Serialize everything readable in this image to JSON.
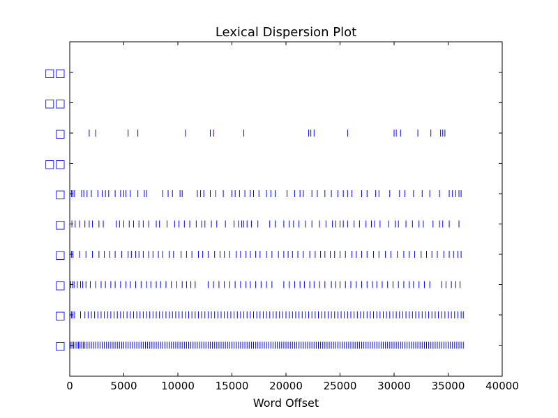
{
  "chart_data": {
    "type": "scatter",
    "title": "Lexical Dispersion Plot",
    "xlabel": "Word Offset",
    "ylabel": "",
    "xlim": [
      0,
      40000
    ],
    "xticks": [
      0,
      5000,
      10000,
      15000,
      20000,
      25000,
      30000,
      35000,
      40000
    ],
    "xtick_labels": [
      "0",
      "5000",
      "10000",
      "15000",
      "20000",
      "25000",
      "30000",
      "35000",
      "40000"
    ],
    "grid": false,
    "marker": "|",
    "mark_color": "#0000ff",
    "label_color": "#0000ff",
    "words": [
      {
        "label": "□□",
        "offsets": []
      },
      {
        "label": "□□",
        "offsets": []
      },
      {
        "label": "□",
        "offsets": [
          1800,
          2400,
          5400,
          6300,
          10700,
          13000,
          13300,
          16100,
          22100,
          22300,
          22600,
          25700,
          30000,
          30200,
          30600,
          32200,
          33400,
          34300,
          34500,
          34700
        ]
      },
      {
        "label": "□□",
        "offsets": []
      },
      {
        "label": "□",
        "offsets": [
          150,
          300,
          450,
          1100,
          1300,
          1600,
          2000,
          2600,
          3000,
          3300,
          3600,
          4200,
          4700,
          5000,
          5200,
          5600,
          6300,
          6900,
          7100,
          8600,
          9100,
          9500,
          10200,
          10400,
          11800,
          12100,
          12400,
          13000,
          13500,
          14200,
          15000,
          15300,
          15700,
          16200,
          16700,
          17000,
          17500,
          18200,
          18600,
          19000,
          20100,
          20800,
          21300,
          21600,
          22400,
          22900,
          23600,
          24200,
          24800,
          25300,
          25700,
          26100,
          27000,
          27500,
          28300,
          28600,
          29600,
          30500,
          31000,
          31800,
          32600,
          33300,
          34200,
          35100,
          35400,
          35700,
          36000,
          36200
        ]
      },
      {
        "label": "□",
        "offsets": [
          200,
          500,
          900,
          1400,
          1800,
          2100,
          2700,
          3100,
          4300,
          4600,
          5000,
          5500,
          5900,
          6400,
          6800,
          7300,
          8000,
          8300,
          9000,
          9700,
          10100,
          10600,
          11100,
          11700,
          12200,
          12500,
          13100,
          13600,
          14400,
          15200,
          15600,
          15900,
          16100,
          16400,
          16800,
          17400,
          18500,
          19000,
          19800,
          20300,
          20700,
          21200,
          21800,
          22400,
          23100,
          23700,
          24300,
          24600,
          25000,
          25300,
          25700,
          26300,
          26800,
          27400,
          27900,
          28200,
          28700,
          29500,
          30100,
          30400,
          31100,
          31700,
          32300,
          32700,
          33600,
          34200,
          34500,
          35100,
          36000
        ]
      },
      {
        "label": "□",
        "offsets": [
          150,
          300,
          900,
          1500,
          2100,
          2700,
          3200,
          3700,
          4200,
          4800,
          5400,
          5700,
          6100,
          6400,
          6800,
          7300,
          7700,
          8200,
          8600,
          9200,
          9600,
          10300,
          10800,
          11300,
          11900,
          12300,
          12800,
          13400,
          13900,
          14300,
          14800,
          15400,
          15800,
          16300,
          16700,
          17200,
          17600,
          18200,
          18700,
          19300,
          19800,
          20200,
          20600,
          21100,
          21600,
          22200,
          22700,
          23200,
          23600,
          24100,
          24500,
          25000,
          25500,
          26100,
          26500,
          27000,
          27500,
          28100,
          28600,
          29200,
          29700,
          30300,
          30900,
          31400,
          31900,
          32500,
          33000,
          33500,
          34000,
          34600,
          35100,
          35500,
          35900,
          36200
        ]
      },
      {
        "label": "□",
        "offsets": [
          100,
          250,
          400,
          700,
          1000,
          1200,
          1500,
          1900,
          2400,
          2900,
          3300,
          3800,
          4200,
          4700,
          5200,
          5600,
          6100,
          6600,
          7100,
          7500,
          8000,
          8400,
          8900,
          9400,
          9900,
          10400,
          10800,
          11200,
          11600,
          12800,
          13300,
          13800,
          14300,
          14800,
          15300,
          15800,
          16300,
          16700,
          17200,
          17700,
          18200,
          18700,
          19800,
          20300,
          20800,
          21300,
          21700,
          22200,
          22600,
          23100,
          23600,
          24200,
          24600,
          25000,
          25500,
          26000,
          26500,
          27000,
          27500,
          28000,
          28400,
          28900,
          29400,
          29900,
          30400,
          30900,
          31400,
          31800,
          32300,
          32800,
          33300,
          34400,
          34800,
          35300,
          35700,
          36100
        ]
      },
      {
        "label": "□",
        "offsets": [
          150,
          300,
          450,
          1000,
          1400,
          1700,
          2000,
          2300,
          2600,
          2900,
          3200,
          3500,
          3800,
          4100,
          4400,
          4700,
          5000,
          5300,
          5600,
          5900,
          6200,
          6500,
          6800,
          7100,
          7400,
          7700,
          8000,
          8300,
          8600,
          8900,
          9200,
          9500,
          9800,
          10100,
          10400,
          10700,
          11000,
          11300,
          11600,
          11900,
          12200,
          12500,
          12800,
          13100,
          13400,
          13700,
          14000,
          14300,
          14600,
          14900,
          15200,
          15500,
          15800,
          16100,
          16400,
          16700,
          17000,
          17300,
          17600,
          17900,
          18200,
          18500,
          18800,
          19100,
          19400,
          19700,
          20000,
          20300,
          20600,
          20900,
          21200,
          21500,
          21800,
          22100,
          22400,
          22700,
          23000,
          23300,
          23600,
          23900,
          24200,
          24500,
          24800,
          25100,
          25400,
          25700,
          26000,
          26300,
          26600,
          26900,
          27200,
          27500,
          27800,
          28100,
          28400,
          28700,
          29000,
          29300,
          29600,
          29900,
          30200,
          30500,
          30800,
          31100,
          31400,
          31700,
          32000,
          32300,
          32600,
          32900,
          33200,
          33500,
          33800,
          34100,
          34400,
          34700,
          35000,
          35300,
          35600,
          35900,
          36200,
          36400
        ]
      },
      {
        "label": "□",
        "offsets": [
          50,
          200,
          350,
          500,
          650,
          800,
          950,
          1100,
          1250,
          1400,
          1600,
          1800,
          2000,
          2200,
          2400,
          2600,
          2800,
          3000,
          3200,
          3400,
          3600,
          3800,
          4000,
          4200,
          4400,
          4600,
          4800,
          5000,
          5200,
          5400,
          5600,
          5800,
          6000,
          6200,
          6400,
          6600,
          6800,
          7000,
          7200,
          7400,
          7600,
          7800,
          8000,
          8200,
          8400,
          8600,
          8800,
          9000,
          9200,
          9400,
          9600,
          9800,
          10000,
          10200,
          10400,
          10600,
          10800,
          11000,
          11200,
          11400,
          11600,
          11800,
          12000,
          12200,
          12400,
          12600,
          12800,
          13000,
          13200,
          13400,
          13600,
          13800,
          14000,
          14200,
          14400,
          14600,
          14800,
          15000,
          15200,
          15400,
          15600,
          15800,
          16000,
          16200,
          16400,
          16600,
          16800,
          17000,
          17200,
          17400,
          17600,
          17800,
          18000,
          18200,
          18400,
          18600,
          18800,
          19000,
          19200,
          19400,
          19600,
          19800,
          20000,
          20200,
          20400,
          20600,
          20800,
          21000,
          21200,
          21400,
          21600,
          21800,
          22000,
          22200,
          22400,
          22600,
          22800,
          23000,
          23200,
          23400,
          23600,
          23800,
          24000,
          24200,
          24400,
          24600,
          24800,
          25000,
          25200,
          25400,
          25600,
          25800,
          26000,
          26200,
          26400,
          26600,
          26800,
          27000,
          27200,
          27400,
          27600,
          27800,
          28000,
          28200,
          28400,
          28600,
          28800,
          29000,
          29200,
          29400,
          29600,
          29800,
          30000,
          30200,
          30400,
          30600,
          30800,
          31000,
          31200,
          31400,
          31600,
          31800,
          32000,
          32200,
          32400,
          32600,
          32800,
          33000,
          33200,
          33400,
          33600,
          33800,
          34000,
          34200,
          34400,
          34600,
          34800,
          35000,
          35200,
          35400,
          35600,
          35800,
          36000,
          36200,
          36400
        ]
      }
    ]
  }
}
